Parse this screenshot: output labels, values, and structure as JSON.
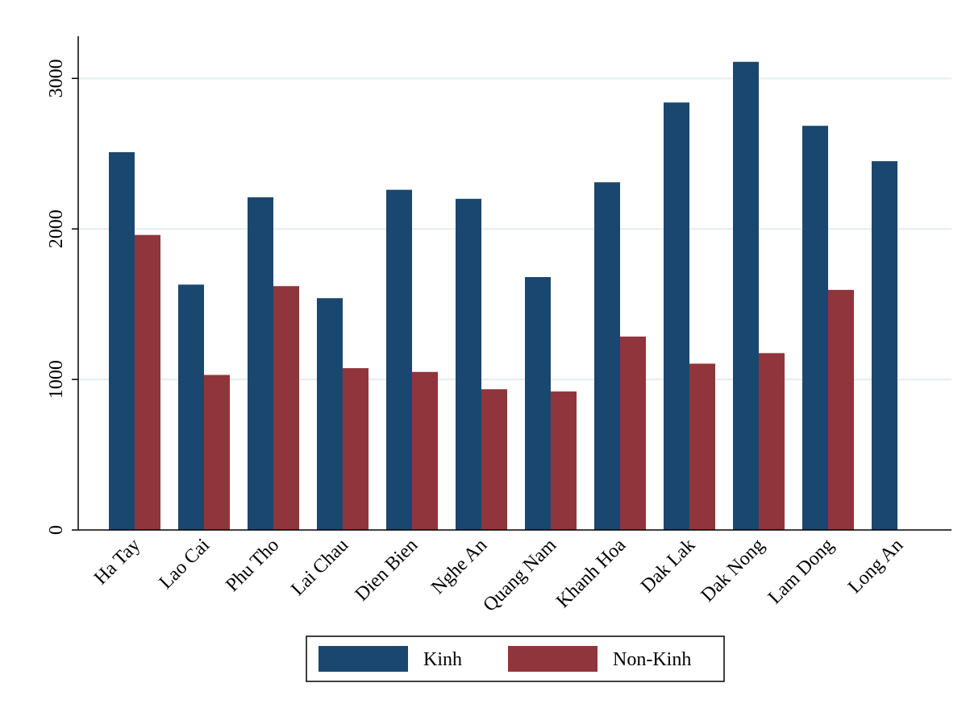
{
  "chart_data": {
    "type": "bar",
    "categories": [
      "Ha Tay",
      "Lao Cai",
      "Phu Tho",
      "Lai Chau",
      "Dien Bien",
      "Nghe An",
      "Quang Nam",
      "Khanh Hoa",
      "Dak Lak",
      "Dak Nong",
      "Lam Dong",
      "Long An"
    ],
    "series": [
      {
        "name": "Kinh",
        "color": "#1a476f",
        "values": [
          2510,
          1630,
          2210,
          1540,
          2260,
          2200,
          1680,
          2310,
          2840,
          3110,
          2685,
          2450
        ]
      },
      {
        "name": "Non-Kinh",
        "color": "#90353b",
        "values": [
          1960,
          1030,
          1620,
          1075,
          1050,
          935,
          920,
          1285,
          1105,
          1175,
          1595,
          null
        ]
      }
    ],
    "ylim": [
      0,
      3280
    ],
    "yticks": [
      0,
      1000,
      2000,
      3000
    ],
    "grid": true,
    "legend": "bottom"
  }
}
